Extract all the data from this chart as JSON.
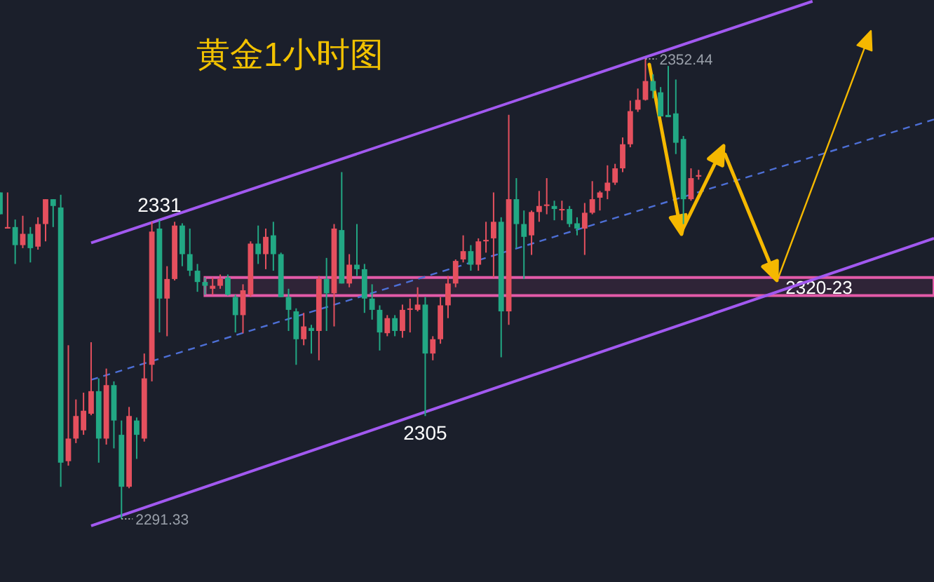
{
  "chart_data": {
    "type": "candlestick",
    "title": "黄金1小时图",
    "categories": [
      null,
      null,
      null,
      null,
      null,
      null,
      null,
      null,
      null,
      null,
      null,
      null,
      null,
      null,
      null,
      null,
      null,
      null,
      null,
      null,
      null,
      null,
      null,
      null,
      null,
      null,
      null,
      null,
      null,
      null,
      null,
      null,
      null,
      null,
      null,
      null,
      null,
      null,
      null,
      null,
      null,
      null,
      null,
      null,
      null,
      null,
      null,
      null,
      null,
      null,
      null,
      null,
      null,
      null,
      null,
      null,
      null,
      null,
      null,
      null,
      null,
      null,
      null,
      null,
      null,
      null,
      null,
      null,
      null,
      null,
      null,
      null,
      null,
      null,
      null,
      null,
      null,
      null,
      null,
      null,
      null,
      null,
      null,
      null,
      null,
      null,
      null,
      null,
      null,
      null,
      null,
      null,
      null,
      null,
      null,
      null,
      null,
      null,
      null,
      null,
      null,
      null,
      null,
      null,
      null,
      null,
      null,
      null,
      null,
      null,
      null,
      null,
      null,
      null,
      null,
      null,
      null,
      null,
      null,
      null,
      null,
      null,
      null,
      null
    ],
    "ohlc": [
      [
        2334.7,
        2334.7,
        2331.8,
        2331.8
      ],
      [
        2329.9,
        2334.7,
        2329.9,
        2330.1
      ],
      [
        2330.1,
        2331.1,
        2325.2,
        2327.7
      ],
      [
        2327.7,
        2331.6,
        2327.3,
        2329.2
      ],
      [
        2329.2,
        2330.1,
        2325.4,
        2327.3
      ],
      [
        2327.5,
        2331.4,
        2327.1,
        2330.5
      ],
      [
        2330.5,
        2333.8,
        2328.2,
        2333.8
      ],
      [
        2333.8,
        2333.8,
        2330.1,
        2332.9
      ],
      [
        2332.7,
        2334.4,
        2295.6,
        2298.8
      ],
      [
        2299.0,
        2314.4,
        2298.4,
        2302.0
      ],
      [
        2302.0,
        2307.2,
        2301.4,
        2305.0
      ],
      [
        2303.1,
        2308.1,
        2302.5,
        2305.7
      ],
      [
        2305.3,
        2314.8,
        2305.1,
        2308.3
      ],
      [
        2308.3,
        2310.0,
        2298.8,
        2302.0
      ],
      [
        2302.0,
        2311.3,
        2301.2,
        2309.1
      ],
      [
        2309.1,
        2309.6,
        2300.7,
        2304.4
      ],
      [
        2302.5,
        2304.4,
        2291.33,
        2295.6
      ],
      [
        2295.6,
        2306.2,
        2295.4,
        2305.0
      ],
      [
        2304.4,
        2304.8,
        2299.3,
        2302.5
      ],
      [
        2302.0,
        2313.3,
        2301.6,
        2310.0
      ],
      [
        2311.8,
        2330.8,
        2309.6,
        2329.5
      ],
      [
        2329.9,
        2331.0,
        2316.1,
        2320.6
      ],
      [
        2320.6,
        2324.9,
        2315.6,
        2323.2
      ],
      [
        2323.2,
        2330.8,
        2323.0,
        2330.3
      ],
      [
        2330.3,
        2330.6,
        2324.9,
        2326.5
      ],
      [
        2326.5,
        2329.9,
        2323.6,
        2324.3
      ],
      [
        2324.3,
        2325.2,
        2321.5,
        2322.8
      ],
      [
        2322.8,
        2323.4,
        2321.1,
        2322.3
      ],
      [
        2321.9,
        2323.4,
        2321.1,
        2322.3
      ],
      [
        2322.3,
        2323.8,
        2321.9,
        2323.2
      ],
      [
        2323.4,
        2323.8,
        2321.0,
        2321.1
      ],
      [
        2320.8,
        2321.1,
        2316.1,
        2318.4
      ],
      [
        2318.4,
        2322.5,
        2316.0,
        2321.7
      ],
      [
        2321.1,
        2328.2,
        2320.8,
        2327.9
      ],
      [
        2327.9,
        2330.3,
        2325.2,
        2326.5
      ],
      [
        2326.5,
        2329.9,
        2324.5,
        2328.8
      ],
      [
        2329.0,
        2330.8,
        2324.3,
        2326.5
      ],
      [
        2326.5,
        2326.7,
        2320.8,
        2320.8
      ],
      [
        2320.8,
        2321.9,
        2316.3,
        2319.1
      ],
      [
        2318.9,
        2319.3,
        2311.8,
        2315.2
      ],
      [
        2315.2,
        2318.7,
        2314.4,
        2316.9
      ],
      [
        2316.7,
        2317.1,
        2313.3,
        2316.3
      ],
      [
        2316.3,
        2323.6,
        2312.4,
        2323.2
      ],
      [
        2323.2,
        2326.0,
        2316.3,
        2321.3
      ],
      [
        2321.3,
        2330.5,
        2316.9,
        2329.9
      ],
      [
        2329.7,
        2337.4,
        2322.6,
        2322.6
      ],
      [
        2322.6,
        2326.5,
        2322.1,
        2325.1
      ],
      [
        2325.1,
        2330.5,
        2323.6,
        2324.5
      ],
      [
        2324.5,
        2325.2,
        2318.7,
        2320.6
      ],
      [
        2320.6,
        2322.5,
        2317.8,
        2319.1
      ],
      [
        2319.1,
        2319.7,
        2313.7,
        2316.1
      ],
      [
        2316.0,
        2318.4,
        2315.6,
        2318.0
      ],
      [
        2318.0,
        2318.4,
        2315.6,
        2316.3
      ],
      [
        2316.3,
        2319.8,
        2315.4,
        2319.1
      ],
      [
        2319.1,
        2320.6,
        2316.1,
        2319.3
      ],
      [
        2319.1,
        2322.1,
        2318.9,
        2319.8
      ],
      [
        2319.8,
        2320.8,
        2305.0,
        2313.3
      ],
      [
        2313.3,
        2315.6,
        2312.4,
        2315.2
      ],
      [
        2315.2,
        2320.8,
        2314.6,
        2319.7
      ],
      [
        2319.7,
        2323.6,
        2318.0,
        2322.6
      ],
      [
        2322.6,
        2325.8,
        2322.1,
        2325.6
      ],
      [
        2325.8,
        2329.0,
        2325.4,
        2326.9
      ],
      [
        2326.9,
        2327.7,
        2324.3,
        2325.1
      ],
      [
        2325.1,
        2328.6,
        2324.3,
        2328.2
      ],
      [
        2328.2,
        2330.8,
        2326.7,
        2328.4
      ],
      [
        2328.6,
        2334.7,
        2323.4,
        2330.8
      ],
      [
        2330.8,
        2331.4,
        2312.8,
        2318.9
      ],
      [
        2318.9,
        2345.0,
        2317.1,
        2333.8
      ],
      [
        2333.8,
        2336.6,
        2327.3,
        2330.5
      ],
      [
        2330.5,
        2332.3,
        2323.2,
        2328.8
      ],
      [
        2329.0,
        2332.3,
        2326.4,
        2332.1
      ],
      [
        2332.1,
        2334.9,
        2330.8,
        2332.9
      ],
      [
        2332.9,
        2336.6,
        2331.8,
        2333.1
      ],
      [
        2332.9,
        2333.6,
        2331.0,
        2332.5
      ],
      [
        2332.4,
        2333.6,
        2331.0,
        2332.5
      ],
      [
        2332.5,
        2332.9,
        2330.1,
        2330.5
      ],
      [
        2330.6,
        2331.4,
        2329.0,
        2329.9
      ],
      [
        2329.9,
        2333.3,
        2326.4,
        2332.0
      ],
      [
        2332.0,
        2336.2,
        2331.8,
        2333.8
      ],
      [
        2334.0,
        2334.9,
        2332.3,
        2334.7
      ],
      [
        2334.9,
        2338.3,
        2333.8,
        2336.0
      ],
      [
        2336.0,
        2338.5,
        2335.7,
        2337.9
      ],
      [
        2337.9,
        2342.0,
        2337.4,
        2341.1
      ],
      [
        2341.1,
        2346.9,
        2340.7,
        2345.5
      ],
      [
        2345.7,
        2348.5,
        2345.4,
        2347.0
      ],
      [
        2347.0,
        2352.44,
        2346.9,
        2349.5
      ],
      [
        2349.5,
        2350.4,
        2347.2,
        2348.2
      ],
      [
        2348.0,
        2348.7,
        2344.8,
        2344.8
      ],
      [
        2345.0,
        2351.5,
        2344.7,
        2344.7
      ],
      [
        2345.2,
        2349.7,
        2339.8,
        2341.3
      ],
      [
        2341.8,
        2342.2,
        2330.5,
        2333.8
      ],
      [
        2333.8,
        2337.9,
        2333.6,
        2336.6
      ],
      [
        2336.8,
        2337.7,
        2336.4,
        2337.0
      ],
      null,
      null,
      null,
      null,
      null,
      null,
      null,
      null,
      null,
      null,
      null,
      null,
      null,
      null,
      null,
      null,
      null,
      null,
      null,
      null,
      null,
      null,
      null,
      null,
      null,
      null,
      null,
      null,
      null,
      null,
      null
    ],
    "colors": [
      "#22a884",
      "#e5505e",
      "#22a884",
      "#e5505e",
      "#22a884",
      "#e5505e",
      "#e5505e",
      "#22a884",
      "#22a884",
      "#e5505e",
      "#e5505e",
      "#e5505e",
      "#e5505e",
      "#22a884",
      "#e5505e",
      "#22a884",
      "#22a884",
      "#e5505e",
      "#22a884",
      "#e5505e",
      "#e5505e",
      "#22a884",
      "#e5505e",
      "#e5505e",
      "#22a884",
      "#22a884",
      "#22a884",
      "#22a884",
      "#e5505e",
      "#e5505e",
      "#22a884",
      "#22a884",
      "#e5505e",
      "#e5505e",
      "#22a884",
      "#e5505e",
      "#22a884",
      "#22a884",
      "#22a884",
      "#22a884",
      "#e5505e",
      "#22a884",
      "#e5505e",
      "#22a884",
      "#e5505e",
      "#22a884",
      "#e5505e",
      "#22a884",
      "#22a884",
      "#22a884",
      "#22a884",
      "#e5505e",
      "#22a884",
      "#e5505e",
      "#e5505e",
      "#e5505e",
      "#22a884",
      "#e5505e",
      "#e5505e",
      "#e5505e",
      "#e5505e",
      "#e5505e",
      "#22a884",
      "#e5505e",
      "#e5505e",
      "#e5505e",
      "#22a884",
      "#e5505e",
      "#22a884",
      "#22a884",
      "#e5505e",
      "#e5505e",
      "#e5505e",
      "#22a884",
      "#e5505e",
      "#22a884",
      "#22a884",
      "#e5505e",
      "#e5505e",
      "#e5505e",
      "#e5505e",
      "#e5505e",
      "#e5505e",
      "#e5505e",
      "#e5505e",
      "#e5505e",
      "#22a884",
      "#22a884",
      "#22a884",
      "#22a884",
      "#22a884",
      "#e5505e",
      "#e5505e",
      null,
      null,
      null,
      null,
      null,
      null,
      null,
      null,
      null,
      null,
      null,
      null,
      null,
      null,
      null,
      null,
      null,
      null,
      null,
      null,
      null,
      null,
      null,
      null,
      null,
      null,
      null,
      null,
      null,
      null,
      null
    ],
    "series": [
      {
        "type": "line",
        "values": [
          null,
          null,
          null,
          null,
          null,
          null,
          null,
          null,
          null,
          null,
          null,
          null,
          2328.0,
          null,
          null,
          null,
          null,
          null,
          null,
          null,
          null,
          null,
          null,
          null,
          null,
          null,
          null,
          null,
          null,
          null,
          null,
          null,
          null,
          null,
          null,
          null,
          null,
          null,
          null,
          null,
          null,
          null,
          null,
          null,
          null,
          null,
          null,
          null,
          null,
          null,
          null,
          null,
          null,
          null,
          null,
          null,
          null,
          null,
          null,
          null,
          null,
          null,
          null,
          null,
          null,
          null,
          null,
          null,
          null,
          null,
          null,
          null,
          null,
          null,
          null,
          null,
          null,
          null,
          null,
          null,
          null,
          null,
          null,
          null,
          null,
          null,
          null,
          null,
          null,
          null,
          null,
          null,
          null,
          null,
          null,
          null,
          null,
          null,
          null,
          null,
          null,
          null,
          null,
          null,
          null,
          null,
          null,
          2360.1,
          null,
          null,
          null,
          null,
          null,
          null,
          null,
          null,
          null,
          null,
          null,
          null,
          null,
          null,
          null,
          null
        ],
        "color": "#a259f0"
      },
      {
        "type": "line",
        "values": [
          null,
          null,
          null,
          null,
          null,
          null,
          null,
          null,
          null,
          null,
          null,
          null,
          2290.4,
          null,
          null,
          null,
          null,
          null,
          null,
          null,
          null,
          null,
          null,
          null,
          null,
          null,
          null,
          null,
          null,
          null,
          null,
          null,
          null,
          null,
          null,
          null,
          null,
          null,
          null,
          null,
          null,
          null,
          null,
          null,
          null,
          null,
          null,
          null,
          null,
          null,
          null,
          null,
          null,
          null,
          null,
          null,
          null,
          null,
          null,
          null,
          null,
          null,
          null,
          null,
          null,
          null,
          null,
          null,
          null,
          null,
          null,
          null,
          null,
          null,
          null,
          null,
          null,
          null,
          null,
          null,
          null,
          null,
          null,
          null,
          null,
          null,
          null,
          null,
          null,
          null,
          null,
          null,
          null,
          null,
          null,
          null,
          null,
          null,
          null,
          null,
          null,
          null,
          null,
          null,
          null,
          null,
          null,
          null,
          null,
          null,
          null,
          null,
          null,
          null,
          null,
          null,
          null,
          null,
          null,
          null,
          null,
          null,
          null,
          2328.6
        ],
        "color": "#a259f0"
      },
      {
        "type": "line",
        "values": [
          null,
          null,
          null,
          null,
          null,
          null,
          null,
          null,
          null,
          null,
          null,
          null,
          2309.8,
          null,
          null,
          null,
          null,
          null,
          null,
          null,
          null,
          null,
          null,
          null,
          null,
          null,
          null,
          null,
          null,
          null,
          null,
          null,
          null,
          null,
          null,
          null,
          null,
          null,
          null,
          null,
          null,
          null,
          null,
          null,
          null,
          null,
          null,
          null,
          null,
          null,
          null,
          null,
          null,
          null,
          null,
          null,
          null,
          null,
          null,
          null,
          null,
          null,
          null,
          null,
          null,
          null,
          null,
          null,
          null,
          null,
          null,
          null,
          null,
          null,
          null,
          null,
          null,
          null,
          null,
          null,
          null,
          null,
          null,
          null,
          null,
          null,
          null,
          null,
          null,
          null,
          null,
          null,
          null,
          null,
          null,
          null,
          null,
          null,
          null,
          null,
          null,
          null,
          null,
          null,
          null,
          null,
          null,
          null,
          null,
          null,
          null,
          null,
          null,
          null,
          null,
          null,
          null,
          null,
          null,
          null,
          null,
          null,
          null,
          2344.4
        ],
        "color": "#4d6fd6",
        "line_style": "dashed"
      }
    ],
    "tick_labels": false,
    "bands": [
      {
        "axis": "y",
        "from": 2321.0,
        "to": 2323.4,
        "label": "2320-23",
        "color": "#e35aa8"
      }
    ],
    "annotations": [
      "2352.44",
      {
        "text": "2331",
        "y": 2331.0
      },
      {
        "text": "2305",
        "y": 2305.0
      },
      "2291.33"
    ]
  }
}
